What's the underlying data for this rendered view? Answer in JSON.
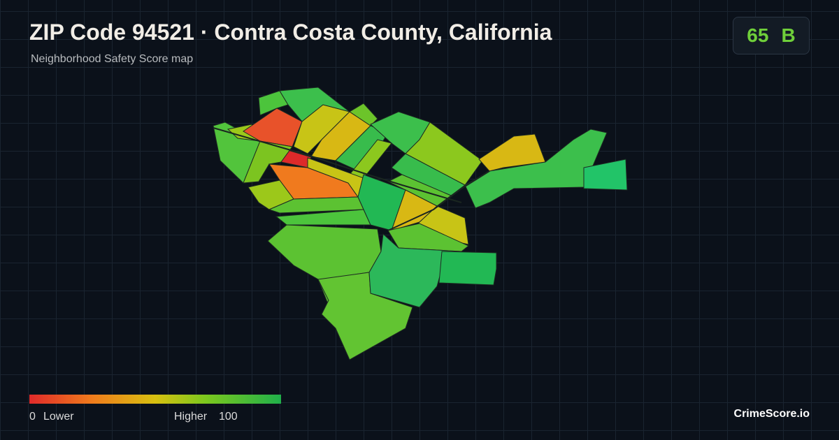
{
  "header": {
    "title": "ZIP Code 94521 · Contra Costa County, California",
    "subtitle": "Neighborhood Safety Score map"
  },
  "score": {
    "value": 65,
    "grade": "B"
  },
  "legend": {
    "min": 0,
    "min_label": "Lower",
    "max_label": "Higher",
    "max": 100
  },
  "brand": "CrimeScore.io"
}
